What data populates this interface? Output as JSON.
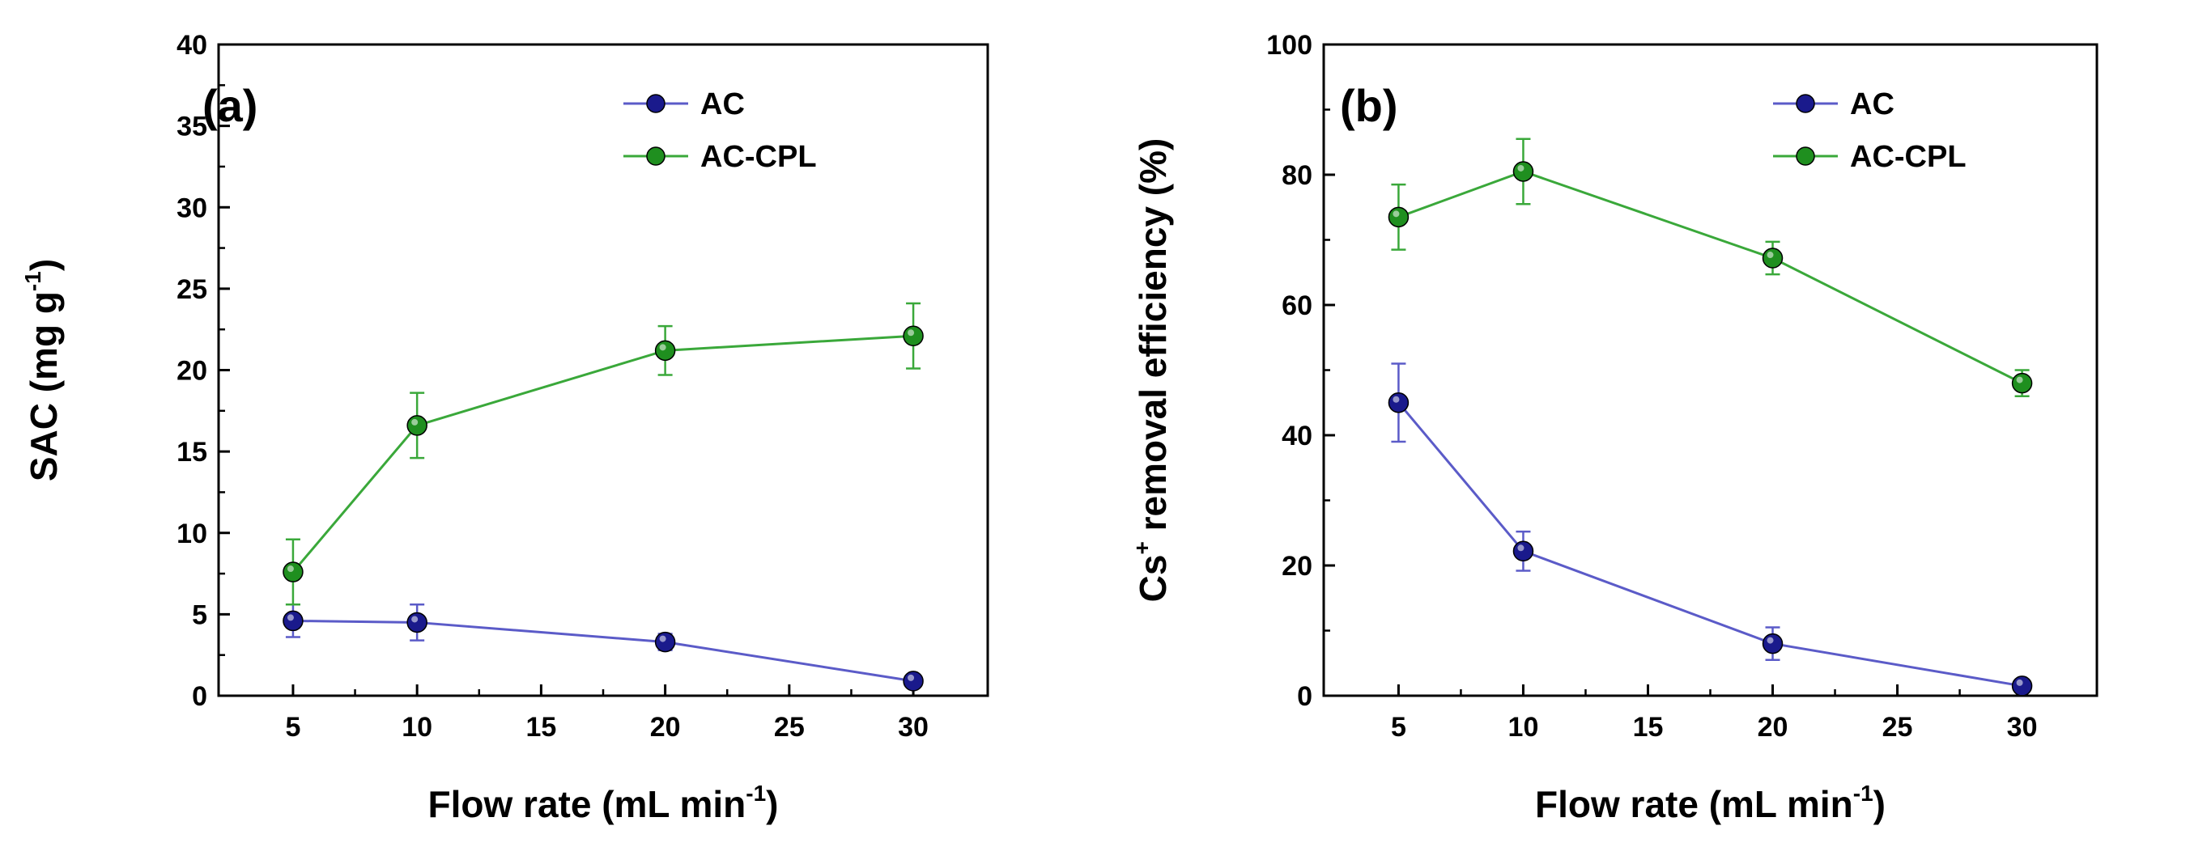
{
  "chart_data": [
    {
      "type": "line",
      "panel_label": "(a)",
      "xlabel": "Flow rate (mL min",
      "xlabel_sup": "-1",
      "xlabel_end": ")",
      "ylabel": "SAC (mg g",
      "ylabel_sup": "-1",
      "ylabel_end": ")",
      "xlim": [
        2,
        33
      ],
      "ylim": [
        0,
        40
      ],
      "xticks": [
        5,
        10,
        15,
        20,
        25,
        30
      ],
      "yticks": [
        0,
        5,
        10,
        15,
        20,
        25,
        30,
        35,
        40
      ],
      "legend_position": "top-right",
      "series": [
        {
          "name": "AC",
          "color": "#5b5bc8",
          "marker_color": "#1a1a8c",
          "x": [
            5,
            10,
            20,
            30
          ],
          "y": [
            4.6,
            4.5,
            3.3,
            0.9
          ],
          "err": [
            1.0,
            1.1,
            0.5,
            0.2
          ]
        },
        {
          "name": "AC-CPL",
          "color": "#3aa83a",
          "marker_color": "#1f8f1f",
          "x": [
            5,
            10,
            20,
            30
          ],
          "y": [
            7.6,
            16.6,
            21.2,
            22.1
          ],
          "err": [
            2.0,
            2.0,
            1.5,
            2.0
          ]
        }
      ]
    },
    {
      "type": "line",
      "panel_label": "(b)",
      "xlabel": "Flow rate (mL min",
      "xlabel_sup": "-1",
      "xlabel_end": ")",
      "ylabel": "Cs",
      "ylabel_sup": "+",
      "ylabel_end": " removal efficiency (%)",
      "xlim": [
        2,
        33
      ],
      "ylim": [
        0,
        100
      ],
      "xticks": [
        5,
        10,
        15,
        20,
        25,
        30
      ],
      "yticks": [
        0,
        20,
        40,
        60,
        80,
        100
      ],
      "legend_position": "top-right",
      "series": [
        {
          "name": "AC",
          "color": "#5b5bc8",
          "marker_color": "#1a1a8c",
          "x": [
            5,
            10,
            20,
            30
          ],
          "y": [
            45.0,
            22.2,
            8.0,
            1.5
          ],
          "err": [
            6.0,
            3.0,
            2.5,
            0.6
          ]
        },
        {
          "name": "AC-CPL",
          "color": "#3aa83a",
          "marker_color": "#1f8f1f",
          "x": [
            5,
            10,
            20,
            30
          ],
          "y": [
            73.5,
            80.5,
            67.2,
            48.0
          ],
          "err": [
            5.0,
            5.0,
            2.5,
            2.0
          ]
        }
      ]
    }
  ]
}
